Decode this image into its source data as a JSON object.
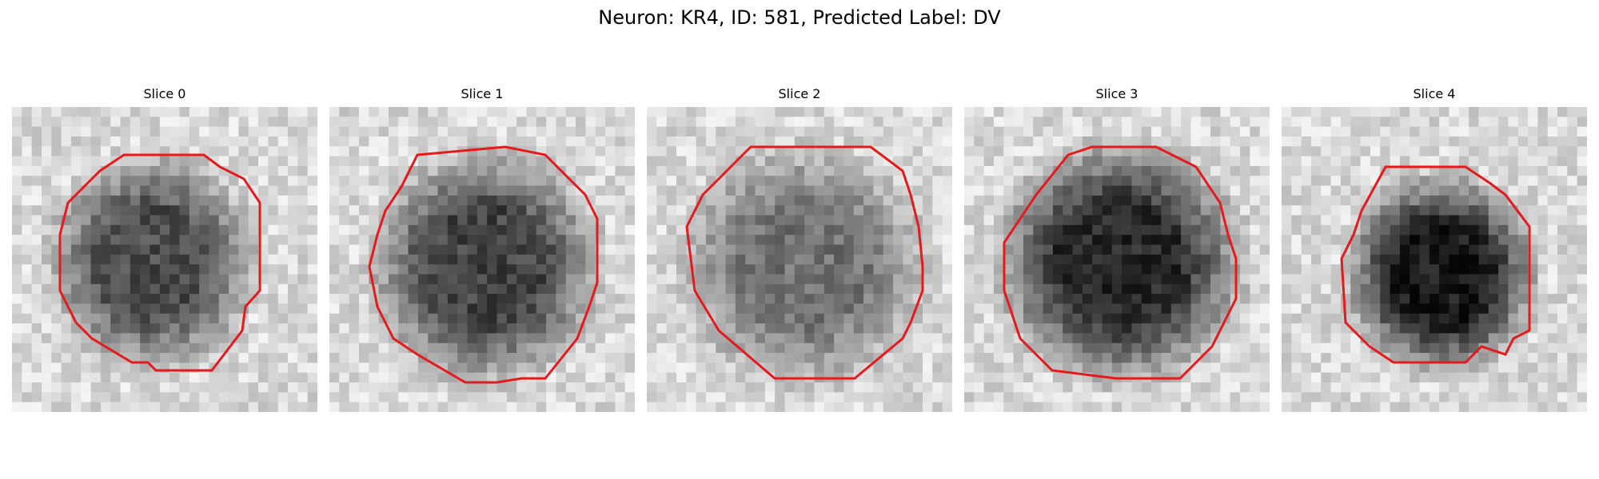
{
  "figure": {
    "title": "Neuron: KR4, ID: 581, Predicted Label: DV"
  },
  "panels": [
    {
      "title": "Slice 0",
      "darkness": 0.55,
      "contour_color": "#e41a1c"
    },
    {
      "title": "Slice 1",
      "darkness": 0.58,
      "contour_color": "#e41a1c"
    },
    {
      "title": "Slice 2",
      "darkness": 0.4,
      "contour_color": "#e41a1c"
    },
    {
      "title": "Slice 3",
      "darkness": 0.68,
      "contour_color": "#e41a1c"
    },
    {
      "title": "Slice 4",
      "darkness": 0.75,
      "contour_color": "#e41a1c"
    }
  ],
  "colormap": "gray"
}
